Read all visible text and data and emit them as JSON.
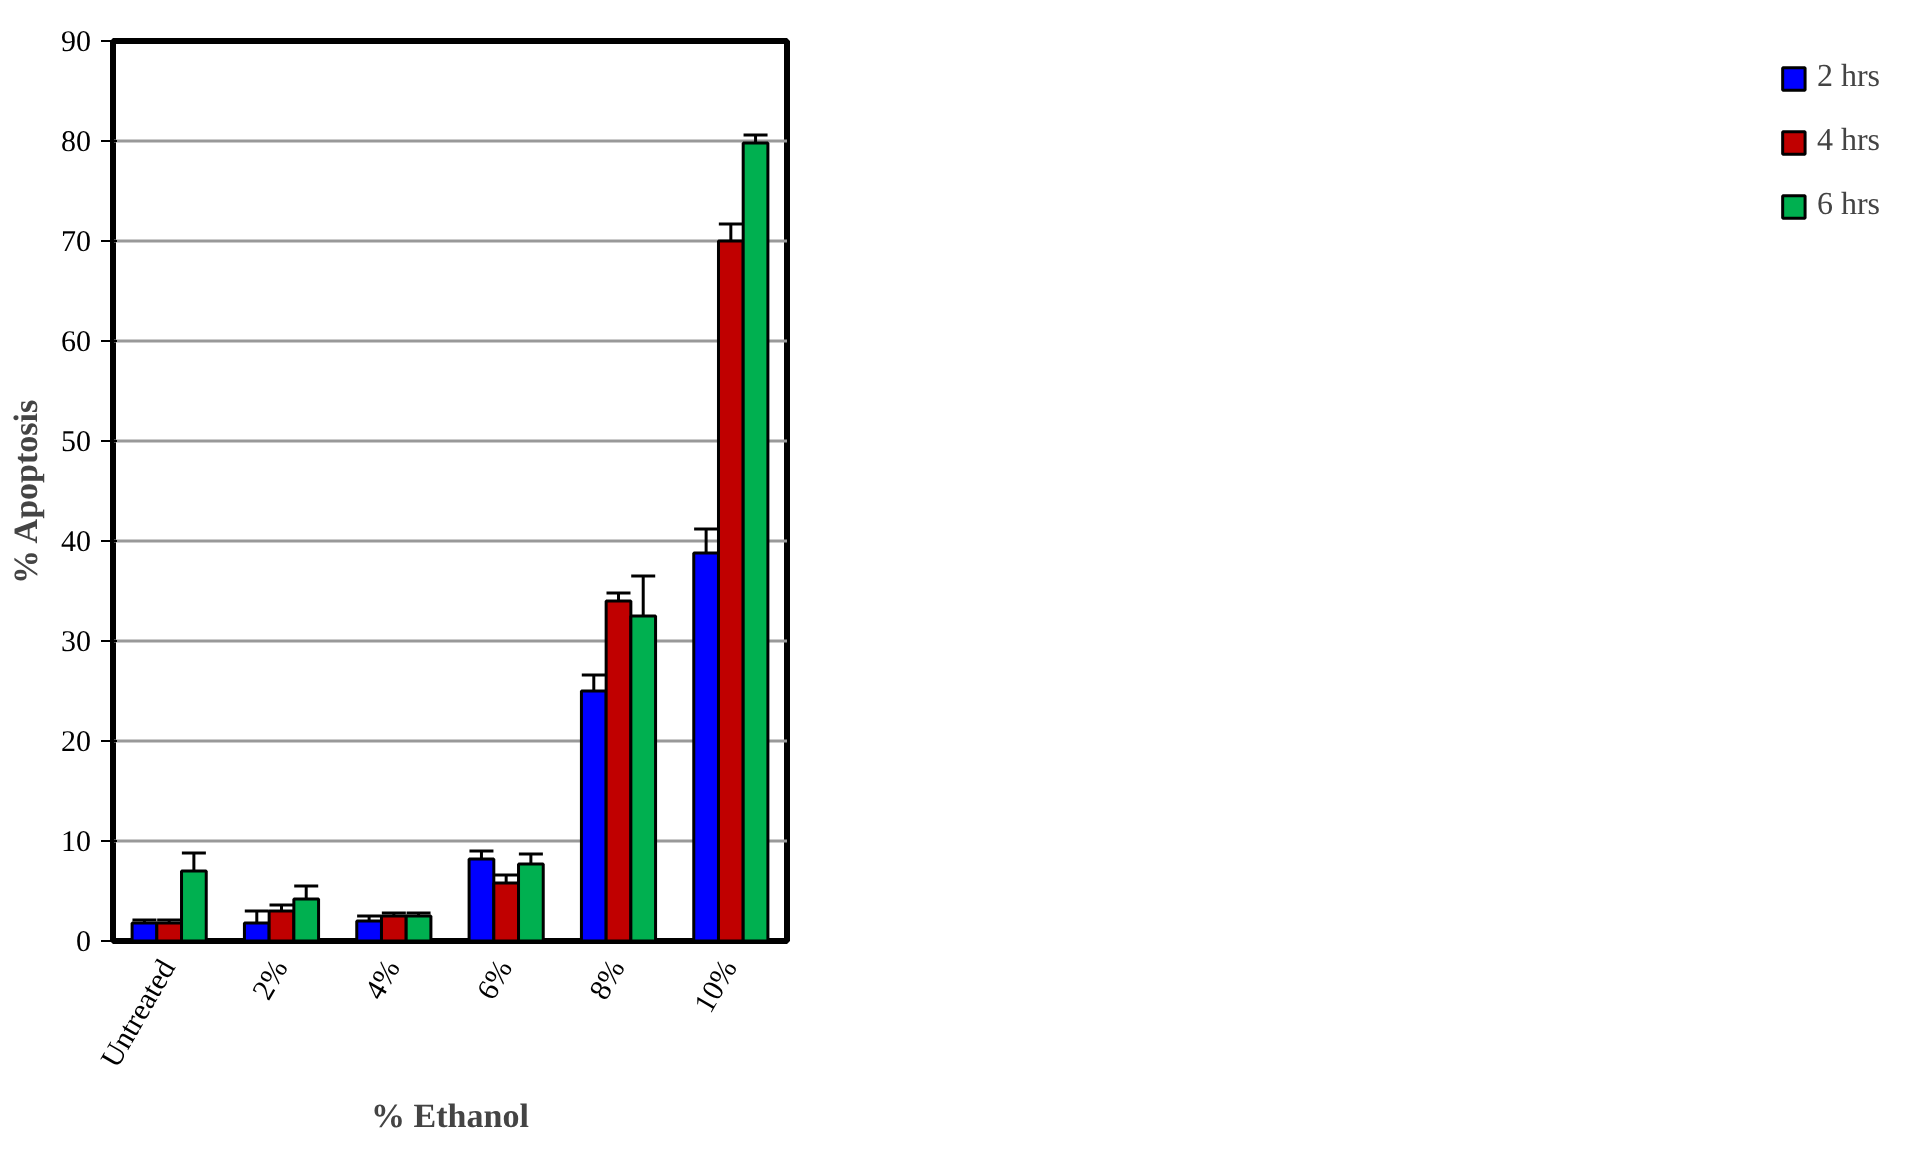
{
  "chart_data": {
    "type": "bar",
    "xlabel": "% Ethanol",
    "ylabel": "% Apoptosis",
    "categories": [
      "Untreated",
      "2%",
      "4%",
      "6%",
      "8%",
      "10%"
    ],
    "series": [
      {
        "name": "2 hrs",
        "color": "#0000ff",
        "values": [
          1.8,
          1.8,
          2.0,
          8.2,
          25,
          38.8
        ],
        "errors": [
          0.3,
          1.2,
          0.5,
          0.8,
          1.6,
          2.4
        ]
      },
      {
        "name": "4 hrs",
        "color": "#c00000",
        "values": [
          1.8,
          3.0,
          2.5,
          5.8,
          34,
          70
        ],
        "errors": [
          0.3,
          0.6,
          0.3,
          0.8,
          0.8,
          1.7
        ]
      },
      {
        "name": "6 hrs",
        "color": "#00b050",
        "values": [
          7.0,
          4.2,
          2.5,
          7.7,
          32.5,
          79.8
        ],
        "errors": [
          1.8,
          1.3,
          0.3,
          1.0,
          4.0,
          0.8
        ]
      }
    ],
    "ylim": [
      0,
      90
    ],
    "yticks": [
      0,
      10,
      20,
      30,
      40,
      50,
      60,
      70,
      80,
      90
    ],
    "grid": "y",
    "legend": "right"
  }
}
